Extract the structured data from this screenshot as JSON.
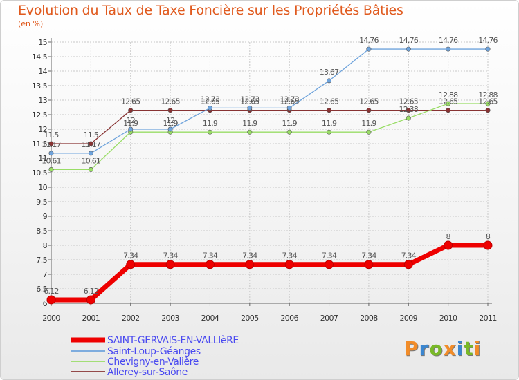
{
  "chart_data": {
    "type": "line",
    "title": "Evolution du Taux de Taxe Foncière sur les Propriétés Bâties",
    "subtitle": "(en %)",
    "ylim": [
      6,
      15
    ],
    "y_ticks": [
      "6",
      "6.5",
      "7",
      "7.5",
      "8",
      "8.5",
      "9",
      "9.5",
      "10",
      "10.5",
      "11",
      "11.5",
      "12",
      "12.5",
      "13",
      "13.5",
      "14",
      "14.5",
      "15"
    ],
    "categories": [
      "2000",
      "2001",
      "2002",
      "2003",
      "2004",
      "2005",
      "2006",
      "2007",
      "2008",
      "2009",
      "2010",
      "2011"
    ],
    "series": [
      {
        "name": "SAINT-GERVAIS-EN-VALLIèRE",
        "color": "#ee0000",
        "values": [
          6.12,
          6.12,
          7.34,
          7.34,
          7.34,
          7.34,
          7.34,
          7.34,
          7.34,
          7.34,
          8,
          8
        ],
        "labels": [
          "6.12",
          "6.12",
          "7.34",
          "7.34",
          "7.34",
          "7.34",
          "7.34",
          "7.34",
          "7.34",
          "7.34",
          "8",
          "8"
        ]
      },
      {
        "name": "Saint-Loup-Géanges",
        "color": "#6ea3dc",
        "values": [
          11.17,
          11.17,
          12,
          12,
          12.73,
          12.73,
          12.73,
          13.67,
          14.76,
          14.76,
          14.76,
          14.76
        ],
        "labels": [
          "11.17",
          "11.17",
          "12",
          "12",
          "12.73",
          "12.73",
          "12.73",
          "13.67",
          "14.76",
          "14.76",
          "14.76",
          "14.76"
        ]
      },
      {
        "name": "Chevigny-en-Valière",
        "color": "#99dd66",
        "values": [
          10.61,
          10.61,
          11.9,
          11.9,
          11.9,
          11.9,
          11.9,
          11.9,
          11.9,
          12.38,
          12.88,
          12.88
        ],
        "labels": [
          "10.61",
          "10.61",
          "11.9",
          "11.9",
          "11.9",
          "11.9",
          "11.9",
          "11.9",
          "11.9",
          "12.38",
          "12.88",
          "12.88"
        ]
      },
      {
        "name": "Allerey-sur-Saône",
        "color": "#883333",
        "values": [
          11.5,
          11.5,
          12.65,
          12.65,
          12.65,
          12.65,
          12.65,
          12.65,
          12.65,
          12.65,
          12.65,
          12.65
        ],
        "labels": [
          "11.5",
          "11.5",
          "12.65",
          "12.65",
          "12.65",
          "12.65",
          "12.65",
          "12.65",
          "12.65",
          "12.65",
          "12.65",
          "12.65"
        ]
      }
    ]
  },
  "logo": {
    "letters": [
      "P",
      "r",
      "o",
      "x",
      "i",
      "t",
      "i"
    ],
    "colors": [
      "#f28c28",
      "#3a86d0",
      "#79b928",
      "#f28c28",
      "#3a86d0",
      "#79b928",
      "#f28c28"
    ]
  }
}
